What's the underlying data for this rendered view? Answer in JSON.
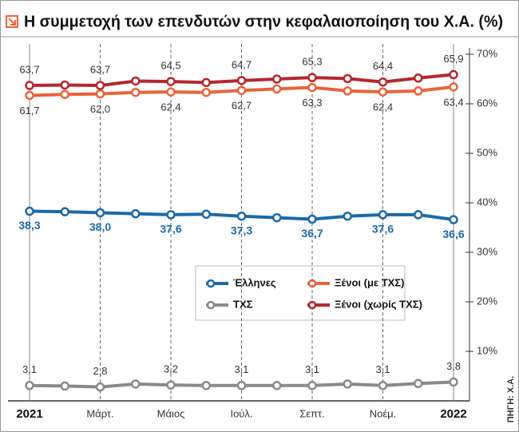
{
  "chart_data": {
    "type": "line",
    "title": "Η συμμετοχή των επενδυτών στην κεφαλαιοποίηση του Χ.Α. (%)",
    "source": "ΠΗΓΗ: Χ.Α.",
    "categories": [
      "2021",
      null,
      "Μάρτ.",
      null,
      "Μάιος",
      null,
      "Ιούλ.",
      null,
      "Σεπτ.",
      null,
      "Νοέμ.",
      null,
      "2022"
    ],
    "ylim": [
      0,
      70
    ],
    "yticks": [
      {
        "value": 10,
        "label": "10%"
      },
      {
        "value": 20,
        "label": "20%"
      },
      {
        "value": 30,
        "label": "30%"
      },
      {
        "value": 40,
        "label": "40%"
      },
      {
        "value": 50,
        "label": "50%"
      },
      {
        "value": 60,
        "label": "60%"
      },
      {
        "value": 70,
        "label": "70%"
      }
    ],
    "series": [
      {
        "name": "Έλληνες",
        "color": "#1a6aa8",
        "values": [
          38.3,
          38.2,
          38.0,
          37.8,
          37.6,
          37.7,
          37.3,
          37.0,
          36.7,
          37.3,
          37.6,
          37.6,
          36.6
        ],
        "value_labels": [
          "38,3",
          null,
          "38,0",
          null,
          "37,6",
          null,
          "37,3",
          null,
          "36,7",
          null,
          "37,6",
          null,
          "36,6"
        ]
      },
      {
        "name": "Ξένοι (με ΤΧΣ)",
        "color": "#e8643a",
        "values": [
          61.7,
          61.9,
          62.0,
          62.3,
          62.4,
          62.3,
          62.7,
          63.0,
          63.3,
          62.6,
          62.4,
          62.6,
          63.4
        ],
        "value_labels": [
          "61,7",
          null,
          "62,0",
          null,
          "62,4",
          null,
          "62,7",
          null,
          "63,3",
          null,
          "62,4",
          null,
          "63,4"
        ]
      },
      {
        "name": "ΤΧΣ",
        "color": "#8a8a8a",
        "values": [
          3.1,
          3.0,
          2.8,
          3.4,
          3.2,
          3.1,
          3.1,
          3.1,
          3.1,
          3.4,
          3.1,
          3.5,
          3.8
        ],
        "value_labels": [
          "3,1",
          null,
          "2,8",
          null,
          "3,2",
          null,
          "3,1",
          null,
          "3,1",
          null,
          "3,1",
          null,
          "3,8"
        ]
      },
      {
        "name": "Ξένοι (χωρίς ΤΧΣ)",
        "color": "#b5272d",
        "values": [
          63.7,
          63.8,
          63.7,
          64.6,
          64.5,
          64.3,
          64.7,
          65.0,
          65.3,
          65.1,
          64.4,
          65.2,
          65.9
        ],
        "value_labels": [
          "63,7",
          null,
          "63,7",
          null,
          "64,5",
          null,
          "64,7",
          null,
          "65,3",
          null,
          "64,4",
          null,
          "65,9"
        ]
      }
    ]
  }
}
